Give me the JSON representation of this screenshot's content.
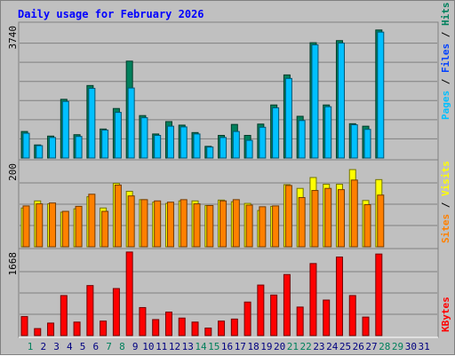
{
  "chart_data": {
    "type": "bar",
    "title": "Daily usage for February 2026",
    "days": [
      "1",
      "2",
      "3",
      "4",
      "5",
      "6",
      "7",
      "8",
      "9",
      "10",
      "11",
      "12",
      "13",
      "14",
      "15",
      "16",
      "17",
      "18",
      "19",
      "20",
      "21",
      "22",
      "23",
      "24",
      "25",
      "26",
      "27",
      "28",
      "29",
      "30",
      "31"
    ],
    "weekend_days": [
      "1",
      "7",
      "8",
      "14",
      "15",
      "21",
      "22",
      "28",
      "29"
    ],
    "panels": [
      {
        "id": "pages_files_hits",
        "ymax_label": "3740",
        "ylim": [
          0,
          3740
        ],
        "axis_label_parts": [
          {
            "text": "Pages",
            "color": "#00c0ff"
          },
          {
            "text": " / ",
            "color": "#000000"
          },
          {
            "text": "Files",
            "color": "#0040ff"
          },
          {
            "text": " / ",
            "color": "#000000"
          },
          {
            "text": "Hits",
            "color": "#00805c"
          }
        ],
        "series": [
          {
            "name": "Hits",
            "color": "#00805c",
            "values": [
              750,
              370,
              620,
              1660,
              660,
              2050,
              820,
              1400,
              2740,
              1200,
              680,
              1030,
              930,
              720,
              330,
              640,
              950,
              640,
              960,
              1500,
              2350,
              1180,
              3260,
              1500,
              3320,
              970,
              900,
              3620,
              null,
              null,
              null
            ]
          },
          {
            "name": "Files",
            "color": "#00c0ff",
            "values": [
              700,
              350,
              580,
              1600,
              610,
              1970,
              790,
              1290,
              1980,
              1140,
              640,
              900,
              880,
              680,
              310,
              580,
              750,
              500,
              870,
              1420,
              2250,
              1060,
              3200,
              1450,
              3250,
              940,
              810,
              3560,
              null,
              null,
              null
            ]
          }
        ]
      },
      {
        "id": "visits_sites",
        "ymax_label": "200",
        "ylim": [
          0,
          200
        ],
        "axis_label_parts": [
          {
            "text": "Sites",
            "color": "#ff8000"
          },
          {
            "text": " / ",
            "color": "#000000"
          },
          {
            "text": "Visits",
            "color": "#ffff00"
          }
        ],
        "series": [
          {
            "name": "Visits",
            "color": "#ffff00",
            "values": [
              93,
              110,
              103,
              83,
              91,
              120,
              93,
              152,
              133,
              113,
              107,
              104,
              110,
              110,
              99,
              112,
              108,
              104,
              87,
              97,
              149,
              140,
              166,
              150,
              150,
              185,
              111,
              161,
              null,
              null,
              null
            ]
          },
          {
            "name": "Sites",
            "color": "#ff8000",
            "values": [
              98,
              103,
              105,
              85,
              97,
              126,
              85,
              148,
              122,
              113,
              110,
              107,
              113,
              103,
              99,
              110,
              113,
              100,
              96,
              98,
              147,
              118,
              135,
              140,
              137,
              160,
              101,
              124,
              null,
              null,
              null
            ]
          }
        ]
      },
      {
        "id": "kbytes",
        "ymax_label": "1668",
        "ylim": [
          0,
          1668
        ],
        "axis_label_parts": [
          {
            "text": "KBytes",
            "color": "#ff0000"
          }
        ],
        "series": [
          {
            "name": "KBytes",
            "color": "#ff0000",
            "values": [
              380,
              140,
              250,
              800,
              270,
              1000,
              290,
              940,
              1670,
              560,
              320,
              470,
              350,
              270,
              150,
              290,
              330,
              670,
              1010,
              810,
              1220,
              570,
              1440,
              710,
              1570,
              800,
              370,
              1630,
              null,
              null,
              null
            ]
          }
        ]
      }
    ]
  }
}
